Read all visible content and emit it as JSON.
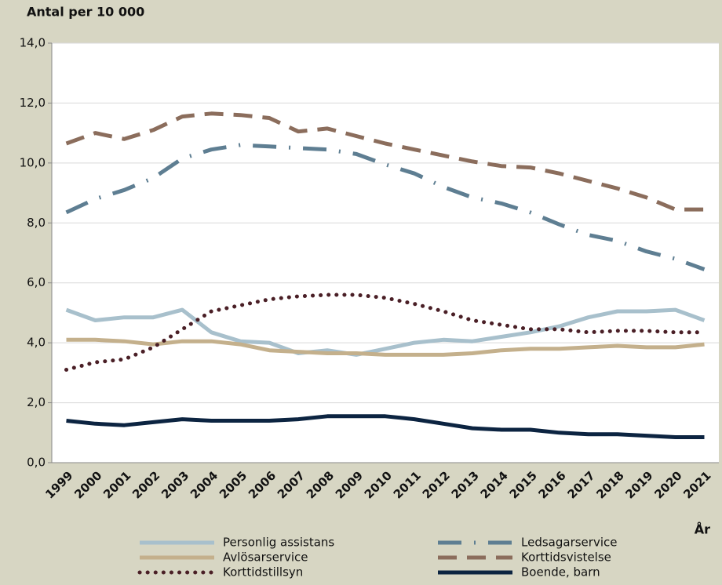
{
  "chart_data": {
    "type": "line",
    "y_label": "Antal per 10 000",
    "x_label": "År",
    "categories": [
      "1999",
      "2000",
      "2001",
      "2002",
      "2003",
      "2004",
      "2005",
      "2006",
      "2007",
      "2008",
      "2009",
      "2010",
      "2011",
      "2012",
      "2013",
      "2014",
      "2015",
      "2016",
      "2017",
      "2018",
      "2019",
      "2020",
      "2021"
    ],
    "ylim": [
      0,
      14
    ],
    "yticks": [
      {
        "value": 0,
        "label": "0,0"
      },
      {
        "value": 2,
        "label": "2,0"
      },
      {
        "value": 4,
        "label": "4,0"
      },
      {
        "value": 6,
        "label": "6,0"
      },
      {
        "value": 8,
        "label": "8,0"
      },
      {
        "value": 10,
        "label": "10,0"
      },
      {
        "value": 12,
        "label": "12,0"
      },
      {
        "value": 14,
        "label": "14,0"
      }
    ],
    "grid": true,
    "series": [
      {
        "name": "Personlig assistans",
        "color": "#a8c0cc",
        "dash": "solid",
        "values": [
          5.1,
          4.75,
          4.85,
          4.85,
          5.1,
          4.35,
          4.05,
          4.0,
          3.65,
          3.75,
          3.6,
          3.8,
          4.0,
          4.1,
          4.05,
          4.2,
          4.35,
          4.55,
          4.85,
          5.05,
          5.05,
          5.1,
          4.75
        ]
      },
      {
        "name": "Ledsagarservice",
        "color": "#5e7e92",
        "dash": "dashdot",
        "values": [
          8.35,
          8.8,
          9.1,
          9.5,
          10.15,
          10.45,
          10.6,
          10.55,
          10.5,
          10.45,
          10.3,
          9.95,
          9.65,
          9.2,
          8.85,
          8.65,
          8.35,
          7.95,
          7.6,
          7.4,
          7.05,
          6.8,
          6.45
        ]
      },
      {
        "name": "Avlösarservice",
        "color": "#c4b08c",
        "dash": "solid",
        "values": [
          4.1,
          4.1,
          4.05,
          3.95,
          4.05,
          4.05,
          3.95,
          3.75,
          3.7,
          3.65,
          3.65,
          3.6,
          3.6,
          3.6,
          3.65,
          3.75,
          3.8,
          3.8,
          3.85,
          3.9,
          3.85,
          3.85,
          3.95
        ]
      },
      {
        "name": "Korttidsvistelse",
        "color": "#8b6d5c",
        "dash": "dashed",
        "values": [
          10.65,
          11.0,
          10.8,
          11.1,
          11.55,
          11.65,
          11.6,
          11.5,
          11.05,
          11.15,
          10.9,
          10.65,
          10.45,
          10.25,
          10.05,
          9.9,
          9.85,
          9.65,
          9.4,
          9.15,
          8.85,
          8.45,
          8.45
        ]
      },
      {
        "name": "Korttidstillsyn",
        "color": "#4a1f26",
        "dash": "dotted",
        "values": [
          3.1,
          3.35,
          3.45,
          3.85,
          4.45,
          5.05,
          5.25,
          5.45,
          5.55,
          5.6,
          5.6,
          5.5,
          5.3,
          5.05,
          4.75,
          4.6,
          4.45,
          4.45,
          4.35,
          4.4,
          4.4,
          4.35,
          4.35
        ]
      },
      {
        "name": "Boende, barn",
        "color": "#0c2441",
        "dash": "solid",
        "values": [
          1.4,
          1.3,
          1.25,
          1.35,
          1.45,
          1.4,
          1.4,
          1.4,
          1.45,
          1.55,
          1.55,
          1.55,
          1.45,
          1.3,
          1.15,
          1.1,
          1.1,
          1.0,
          0.95,
          0.95,
          0.9,
          0.85,
          0.85
        ]
      }
    ]
  }
}
